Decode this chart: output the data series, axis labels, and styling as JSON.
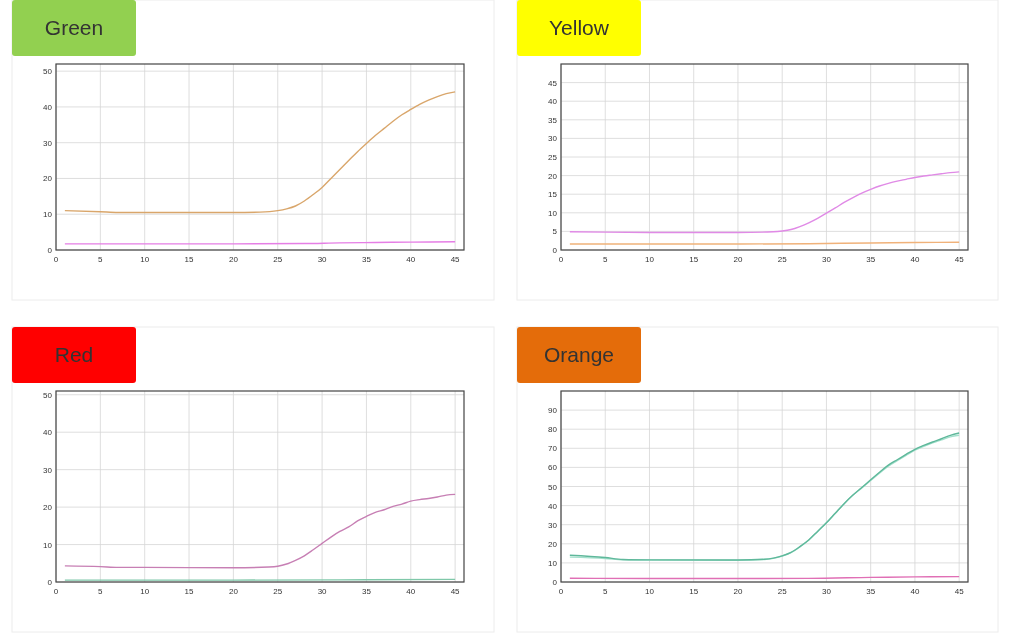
{
  "chart_data": [
    {
      "type": "line",
      "title": "Green",
      "xlim": [
        0,
        46
      ],
      "xticks": [
        0,
        5,
        10,
        15,
        20,
        25,
        30,
        35,
        40,
        45
      ],
      "ylim": [
        0,
        52
      ],
      "yticks": [
        0,
        10,
        20,
        30,
        40,
        50
      ],
      "grid": true,
      "marker": "none",
      "line_style": "solid",
      "series": [
        {
          "color": "#d9a66b",
          "x": [
            1,
            5,
            7,
            10,
            15,
            20,
            23,
            25,
            26,
            27,
            28,
            29,
            30,
            31,
            32,
            33,
            34,
            35,
            36,
            37,
            38,
            39,
            40,
            41,
            42,
            43,
            44,
            45
          ],
          "values": [
            11,
            10.7,
            10.5,
            10.5,
            10.5,
            10.5,
            10.6,
            11,
            11.5,
            12.3,
            13.7,
            15.5,
            17.5,
            20,
            22.5,
            25,
            27.5,
            29.8,
            32,
            34,
            36,
            37.8,
            39.3,
            40.7,
            41.9,
            42.9,
            43.7,
            44.2
          ]
        },
        {
          "color": "#e57ee5",
          "x": [
            1,
            10,
            20,
            28,
            32,
            36,
            40,
            45
          ],
          "values": [
            1.7,
            1.7,
            1.7,
            1.8,
            2,
            2.1,
            2.2,
            2.3
          ]
        }
      ]
    },
    {
      "type": "line",
      "title": "Yellow",
      "xlim": [
        0,
        46
      ],
      "xticks": [
        0,
        5,
        10,
        15,
        20,
        25,
        30,
        35,
        40,
        45
      ],
      "ylim": [
        0,
        50
      ],
      "yticks": [
        0,
        5,
        10,
        15,
        20,
        25,
        30,
        35,
        40,
        45
      ],
      "grid": true,
      "marker": "none",
      "line_style": "solid",
      "series": [
        {
          "color": "#e08ae6",
          "x": [
            1,
            5,
            10,
            20,
            24,
            25,
            26,
            27,
            28,
            29,
            30,
            31,
            32,
            33,
            34,
            35,
            36,
            37,
            38,
            39,
            40,
            41,
            42,
            43,
            44,
            45
          ],
          "values": [
            4.9,
            4.8,
            4.7,
            4.7,
            4.9,
            5.1,
            5.5,
            6.3,
            7.3,
            8.5,
            9.9,
            11.3,
            12.8,
            14.1,
            15.3,
            16.3,
            17.2,
            17.9,
            18.5,
            19,
            19.5,
            19.9,
            20.2,
            20.5,
            20.8,
            21
          ]
        },
        {
          "color": "#f0b27a",
          "x": [
            1,
            10,
            20,
            28,
            35,
            40,
            45
          ],
          "values": [
            1.6,
            1.6,
            1.6,
            1.7,
            1.9,
            2,
            2.1
          ]
        }
      ]
    },
    {
      "type": "line",
      "title": "Red",
      "xlim": [
        0,
        46
      ],
      "xticks": [
        0,
        5,
        10,
        15,
        20,
        25,
        30,
        35,
        40,
        45
      ],
      "ylim": [
        0,
        51
      ],
      "yticks": [
        0,
        10,
        20,
        30,
        40,
        50
      ],
      "grid": true,
      "marker": "none",
      "line_style": "solid",
      "series": [
        {
          "color": "#c77fb4",
          "x": [
            1,
            5,
            7,
            10,
            20,
            24,
            25,
            26,
            27,
            28,
            29,
            30,
            31,
            32,
            33,
            34,
            35,
            36,
            37,
            38,
            39,
            40,
            41,
            42,
            43,
            44,
            45
          ],
          "values": [
            4.3,
            4.1,
            3.9,
            3.9,
            3.8,
            4,
            4.2,
            4.8,
            5.8,
            7,
            8.6,
            10.3,
            12,
            13.5,
            14.7,
            16.3,
            17.5,
            18.6,
            19.3,
            20.2,
            20.8,
            21.6,
            22,
            22.3,
            22.7,
            23.2,
            23.4
          ]
        },
        {
          "color": "#7fc8a9",
          "x": [
            1,
            20,
            35,
            45
          ],
          "values": [
            0.5,
            0.5,
            0.6,
            0.7
          ]
        }
      ]
    },
    {
      "type": "line",
      "title": "Orange",
      "xlim": [
        0,
        46
      ],
      "xticks": [
        0,
        5,
        10,
        15,
        20,
        25,
        30,
        35,
        40,
        45
      ],
      "ylim": [
        0,
        100
      ],
      "yticks": [
        0,
        10,
        20,
        30,
        40,
        50,
        60,
        70,
        80,
        90
      ],
      "grid": true,
      "marker": "none",
      "line_style": "solid",
      "series": [
        {
          "color": "#a3e0cc",
          "x": [
            1,
            5,
            7,
            10,
            20,
            23,
            24,
            25,
            26,
            27,
            28,
            29,
            30,
            31,
            32,
            33,
            34,
            35,
            36,
            37,
            38,
            39,
            40,
            41,
            42,
            43,
            44,
            45
          ],
          "values": [
            13,
            12.3,
            11.6,
            11.5,
            11.4,
            11.8,
            12.4,
            13.6,
            15.4,
            18.4,
            22,
            26.5,
            31,
            36,
            41,
            45.5,
            49.3,
            53.2,
            57,
            60.6,
            63.5,
            66.3,
            69,
            71,
            72.8,
            74.4,
            76,
            76.8
          ]
        },
        {
          "color": "#5fb89b",
          "x": [
            1,
            5,
            7,
            10,
            20,
            23,
            24,
            25,
            26,
            27,
            28,
            29,
            30,
            31,
            32,
            33,
            34,
            35,
            36,
            37,
            38,
            39,
            40,
            41,
            42,
            43,
            44,
            45
          ],
          "values": [
            14,
            12.8,
            11.8,
            11.6,
            11.5,
            11.9,
            12.5,
            13.7,
            15.5,
            18.5,
            22,
            26.5,
            31,
            36,
            41,
            45.5,
            49.5,
            53.5,
            57.5,
            61.2,
            64,
            66.8,
            69.5,
            71.5,
            73.3,
            75,
            76.8,
            78
          ]
        },
        {
          "color": "#e06fb5",
          "x": [
            1,
            10,
            20,
            28,
            35,
            40,
            45
          ],
          "values": [
            2,
            1.8,
            1.8,
            1.9,
            2.4,
            2.7,
            2.8
          ]
        }
      ]
    }
  ]
}
